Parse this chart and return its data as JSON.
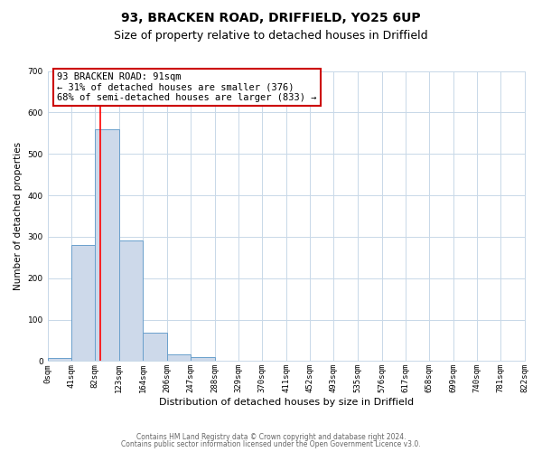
{
  "title": "93, BRACKEN ROAD, DRIFFIELD, YO25 6UP",
  "subtitle": "Size of property relative to detached houses in Driffield",
  "xlabel": "Distribution of detached houses by size in Driffield",
  "ylabel": "Number of detached properties",
  "bar_edges": [
    0,
    41,
    82,
    123,
    164,
    206,
    247,
    288,
    329,
    370,
    411,
    452,
    493,
    535,
    576,
    617,
    658,
    699,
    740,
    781,
    822
  ],
  "bar_heights": [
    8,
    280,
    560,
    292,
    68,
    16,
    10,
    0,
    0,
    0,
    0,
    0,
    0,
    0,
    0,
    0,
    0,
    0,
    0,
    0
  ],
  "bar_color": "#cdd9ea",
  "bar_edge_color": "#6aa0cc",
  "ylim": [
    0,
    700
  ],
  "red_line_x": 91,
  "annotation_title": "93 BRACKEN ROAD: 91sqm",
  "annotation_line1": "← 31% of detached houses are smaller (376)",
  "annotation_line2": "68% of semi-detached houses are larger (833) →",
  "annotation_box_color": "#ffffff",
  "annotation_box_edge_color": "#cc0000",
  "footnote1": "Contains HM Land Registry data © Crown copyright and database right 2024.",
  "footnote2": "Contains public sector information licensed under the Open Government Licence v3.0.",
  "tick_labels": [
    "0sqm",
    "41sqm",
    "82sqm",
    "123sqm",
    "164sqm",
    "206sqm",
    "247sqm",
    "288sqm",
    "329sqm",
    "370sqm",
    "411sqm",
    "452sqm",
    "493sqm",
    "535sqm",
    "576sqm",
    "617sqm",
    "658sqm",
    "699sqm",
    "740sqm",
    "781sqm",
    "822sqm"
  ],
  "background_color": "#ffffff",
  "grid_color": "#c8d8e8",
  "title_fontsize": 10,
  "subtitle_fontsize": 9,
  "xlabel_fontsize": 8,
  "ylabel_fontsize": 7.5,
  "tick_fontsize": 6.5,
  "annotation_fontsize": 7.5,
  "footnote_fontsize": 5.5
}
